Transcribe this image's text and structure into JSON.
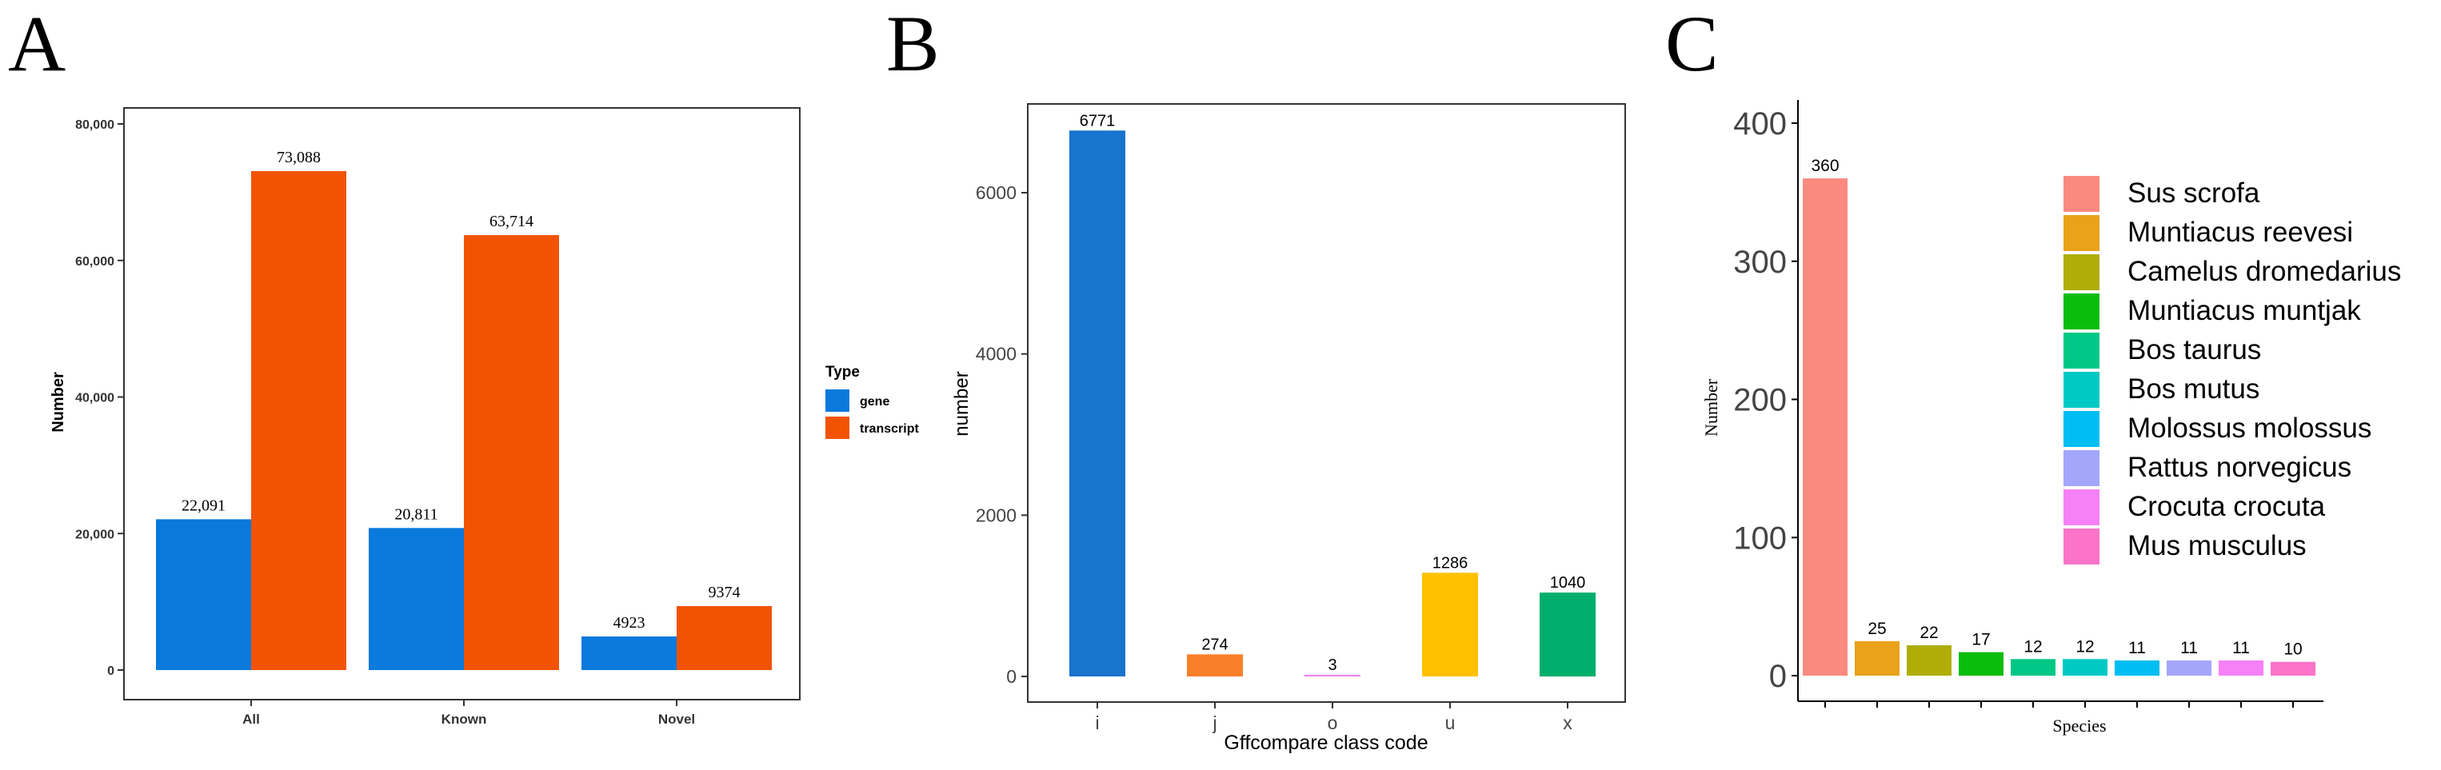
{
  "panels": [
    {
      "letter": "A",
      "chart_data": {
        "type": "bar",
        "title": "",
        "xlabel": "",
        "ylabel": "Number",
        "ylim": [
          0,
          80000
        ],
        "yticks": [
          0,
          20000,
          40000,
          60000,
          80000
        ],
        "ytick_labels": [
          "0",
          "20,000",
          "40,000",
          "60,000",
          "80,000"
        ],
        "categories": [
          "All",
          "Known",
          "Novel"
        ],
        "series": [
          {
            "name": "gene",
            "color": "#0a79dc",
            "values": [
              22091,
              20811,
              4923
            ],
            "labels": [
              "22,091",
              "20,811",
              "4923"
            ]
          },
          {
            "name": "transcript",
            "color": "#f15303",
            "values": [
              73088,
              63714,
              9374
            ],
            "labels": [
              "73,088",
              "63,714",
              "9374"
            ]
          }
        ],
        "legend": {
          "title": "Type",
          "placement": "right"
        },
        "grid": false
      }
    },
    {
      "letter": "B",
      "chart_data": {
        "type": "bar",
        "title": "",
        "xlabel": "Gffcompare class code",
        "ylabel": "number",
        "ylim": [
          0,
          7000
        ],
        "yticks": [
          0,
          2000,
          4000,
          6000
        ],
        "ytick_labels": [
          "0",
          "2000",
          "4000",
          "6000"
        ],
        "categories": [
          "i",
          "j",
          "o",
          "u",
          "x"
        ],
        "values": [
          6771,
          274,
          3,
          1286,
          1040
        ],
        "labels": [
          "6771",
          "274",
          "3",
          "1286",
          "1040"
        ],
        "colors": [
          "#1874cd",
          "#fa7f2a",
          "#ee82ee",
          "#ffc000",
          "#00ae6b"
        ],
        "grid": false
      }
    },
    {
      "letter": "C",
      "chart_data": {
        "type": "bar",
        "title": "",
        "xlabel": "Species",
        "ylabel": "Number",
        "ylim": [
          0,
          410
        ],
        "yticks": [
          0,
          100,
          200,
          300,
          400
        ],
        "ytick_labels": [
          "0",
          "100",
          "200",
          "300",
          "400"
        ],
        "categories": [
          "Sus scrofa",
          "Muntiacus reevesi",
          "Camelus dromedarius",
          "Muntiacus muntjak",
          "Bos taurus",
          "Bos mutus",
          "Molossus molossus",
          "Rattus norvegicus",
          "Crocuta crocuta",
          "Mus musculus"
        ],
        "values": [
          360,
          25,
          22,
          17,
          12,
          12,
          11,
          11,
          11,
          10
        ],
        "labels": [
          "360",
          "25",
          "22",
          "17",
          "12",
          "12",
          "11",
          "11",
          "11",
          "10"
        ],
        "colors": [
          "#fa8a80",
          "#e9a21a",
          "#b0ad08",
          "#0abd0d",
          "#00c785",
          "#00c9c4",
          "#00bdf2",
          "#a3a6fb",
          "#f681f6",
          "#fc74c7"
        ],
        "legend": {
          "placement": "top-right"
        },
        "grid": false
      }
    }
  ]
}
